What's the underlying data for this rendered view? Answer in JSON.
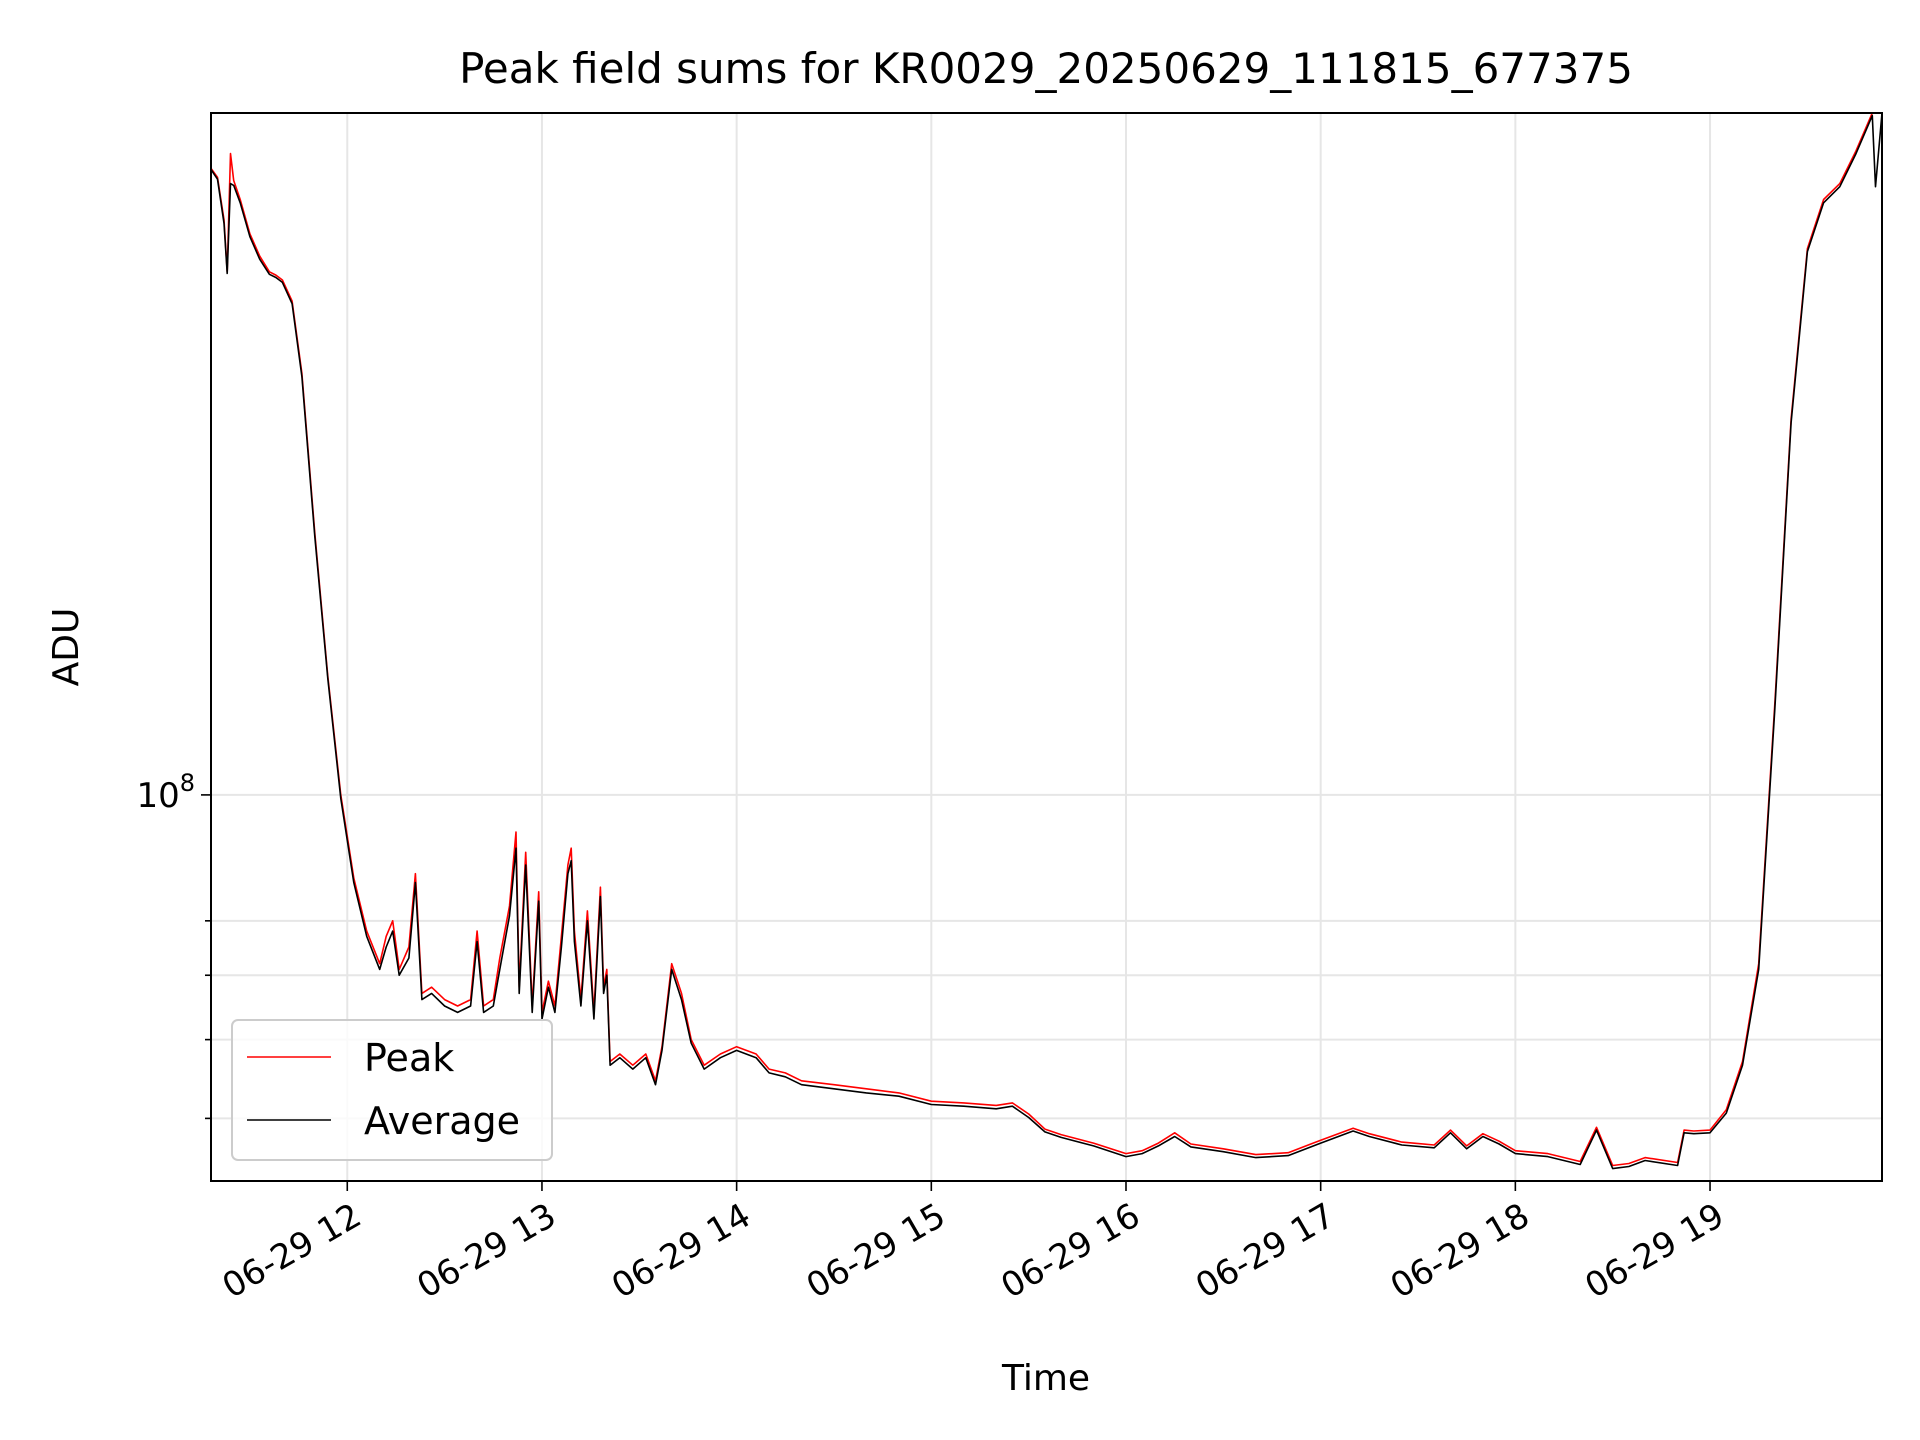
{
  "chart_data": {
    "type": "line",
    "title": "Peak field sums for KR0029_20250629_111815_677375",
    "xlabel": "Time",
    "ylabel": "ADU",
    "y_scale": "log",
    "grid": true,
    "legend_placement": "lower-left",
    "x_ticks": [
      "06-29 12",
      "06-29 13",
      "06-29 14",
      "06-29 15",
      "06-29 16",
      "06-29 17",
      "06-29 18",
      "06-29 19"
    ],
    "y_tick_major": {
      "base": "10",
      "exponent": "8"
    },
    "y_minor_ticks": [
      40000000,
      50000000,
      60000000,
      70000000
    ],
    "xlim": [
      "2025-06-29 11:18",
      "2025-06-29 19:53"
    ],
    "ylim": [
      33500000,
      690000000
    ],
    "series": [
      {
        "name": "Peak",
        "color": "#ff0000",
        "points": [
          [
            "2025-06-29 11:18",
            590000000
          ],
          [
            "2025-06-29 11:20",
            575000000
          ],
          [
            "2025-06-29 11:22",
            510000000
          ],
          [
            "2025-06-29 11:23",
            440000000
          ],
          [
            "2025-06-29 11:24",
            615000000
          ],
          [
            "2025-06-29 11:25",
            570000000
          ],
          [
            "2025-06-29 11:27",
            540000000
          ],
          [
            "2025-06-29 11:30",
            490000000
          ],
          [
            "2025-06-29 11:33",
            460000000
          ],
          [
            "2025-06-29 11:36",
            440000000
          ],
          [
            "2025-06-29 11:38",
            436000000
          ],
          [
            "2025-06-29 11:40",
            430000000
          ],
          [
            "2025-06-29 11:43",
            405000000
          ],
          [
            "2025-06-29 11:46",
            330000000
          ],
          [
            "2025-06-29 11:50",
            210000000
          ],
          [
            "2025-06-29 11:54",
            140000000
          ],
          [
            "2025-06-29 11:58",
            100000000
          ],
          [
            "2025-06-29 12:02",
            79000000
          ],
          [
            "2025-06-29 12:06",
            68000000
          ],
          [
            "2025-06-29 12:10",
            62000000
          ],
          [
            "2025-06-29 12:12",
            67000000
          ],
          [
            "2025-06-29 12:14",
            70000000
          ],
          [
            "2025-06-29 12:16",
            61000000
          ],
          [
            "2025-06-29 12:19",
            65000000
          ],
          [
            "2025-06-29 12:21",
            80000000
          ],
          [
            "2025-06-29 12:23",
            57000000
          ],
          [
            "2025-06-29 12:26",
            58000000
          ],
          [
            "2025-06-29 12:30",
            56000000
          ],
          [
            "2025-06-29 12:34",
            55000000
          ],
          [
            "2025-06-29 12:38",
            56000000
          ],
          [
            "2025-06-29 12:40",
            68000000
          ],
          [
            "2025-06-29 12:42",
            55000000
          ],
          [
            "2025-06-29 12:45",
            56000000
          ],
          [
            "2025-06-29 12:47",
            63000000
          ],
          [
            "2025-06-29 12:50",
            73000000
          ],
          [
            "2025-06-29 12:52",
            90000000
          ],
          [
            "2025-06-29 12:53",
            58000000
          ],
          [
            "2025-06-29 12:55",
            85000000
          ],
          [
            "2025-06-29 12:57",
            55000000
          ],
          [
            "2025-06-29 12:59",
            76000000
          ],
          [
            "2025-06-29 13:00",
            54000000
          ],
          [
            "2025-06-29 13:02",
            59000000
          ],
          [
            "2025-06-29 13:04",
            55000000
          ],
          [
            "2025-06-29 13:06",
            67000000
          ],
          [
            "2025-06-29 13:08",
            82000000
          ],
          [
            "2025-06-29 13:09",
            86000000
          ],
          [
            "2025-06-29 13:10",
            68000000
          ],
          [
            "2025-06-29 13:12",
            56000000
          ],
          [
            "2025-06-29 13:14",
            72000000
          ],
          [
            "2025-06-29 13:16",
            54000000
          ],
          [
            "2025-06-29 13:18",
            77000000
          ],
          [
            "2025-06-29 13:19",
            58000000
          ],
          [
            "2025-06-29 13:20",
            61000000
          ],
          [
            "2025-06-29 13:21",
            47000000
          ],
          [
            "2025-06-29 13:24",
            48000000
          ],
          [
            "2025-06-29 13:28",
            46500000
          ],
          [
            "2025-06-29 13:32",
            48000000
          ],
          [
            "2025-06-29 13:35",
            44500000
          ],
          [
            "2025-06-29 13:37",
            49000000
          ],
          [
            "2025-06-29 13:40",
            62000000
          ],
          [
            "2025-06-29 13:43",
            57000000
          ],
          [
            "2025-06-29 13:46",
            50000000
          ],
          [
            "2025-06-29 13:50",
            46500000
          ],
          [
            "2025-06-29 13:55",
            48000000
          ],
          [
            "2025-06-29 14:00",
            49000000
          ],
          [
            "2025-06-29 14:06",
            48000000
          ],
          [
            "2025-06-29 14:10",
            46000000
          ],
          [
            "2025-06-29 14:15",
            45500000
          ],
          [
            "2025-06-29 14:20",
            44500000
          ],
          [
            "2025-06-29 14:30",
            44000000
          ],
          [
            "2025-06-29 14:40",
            43500000
          ],
          [
            "2025-06-29 14:50",
            43000000
          ],
          [
            "2025-06-29 15:00",
            42000000
          ],
          [
            "2025-06-29 15:10",
            41800000
          ],
          [
            "2025-06-29 15:20",
            41500000
          ],
          [
            "2025-06-29 15:25",
            41800000
          ],
          [
            "2025-06-29 15:30",
            40500000
          ],
          [
            "2025-06-29 15:35",
            38800000
          ],
          [
            "2025-06-29 15:40",
            38200000
          ],
          [
            "2025-06-29 15:50",
            37300000
          ],
          [
            "2025-06-29 16:00",
            36200000
          ],
          [
            "2025-06-29 16:05",
            36500000
          ],
          [
            "2025-06-29 16:10",
            37300000
          ],
          [
            "2025-06-29 16:15",
            38400000
          ],
          [
            "2025-06-29 16:20",
            37200000
          ],
          [
            "2025-06-29 16:30",
            36700000
          ],
          [
            "2025-06-29 16:40",
            36100000
          ],
          [
            "2025-06-29 16:50",
            36300000
          ],
          [
            "2025-06-29 17:00",
            37600000
          ],
          [
            "2025-06-29 17:10",
            38900000
          ],
          [
            "2025-06-29 17:15",
            38300000
          ],
          [
            "2025-06-29 17:25",
            37400000
          ],
          [
            "2025-06-29 17:35",
            37100000
          ],
          [
            "2025-06-29 17:40",
            38700000
          ],
          [
            "2025-06-29 17:45",
            37000000
          ],
          [
            "2025-06-29 17:50",
            38300000
          ],
          [
            "2025-06-29 17:55",
            37500000
          ],
          [
            "2025-06-29 18:00",
            36500000
          ],
          [
            "2025-06-29 18:10",
            36200000
          ],
          [
            "2025-06-29 18:20",
            35400000
          ],
          [
            "2025-06-29 18:25",
            39000000
          ],
          [
            "2025-06-29 18:30",
            35000000
          ],
          [
            "2025-06-29 18:35",
            35200000
          ],
          [
            "2025-06-29 18:40",
            35800000
          ],
          [
            "2025-06-29 18:50",
            35300000
          ],
          [
            "2025-06-29 18:52",
            38700000
          ],
          [
            "2025-06-29 18:55",
            38600000
          ],
          [
            "2025-06-29 19:00",
            38700000
          ],
          [
            "2025-06-29 19:05",
            41000000
          ],
          [
            "2025-06-29 19:10",
            47000000
          ],
          [
            "2025-06-29 19:15",
            62000000
          ],
          [
            "2025-06-29 19:20",
            130000000
          ],
          [
            "2025-06-29 19:25",
            290000000
          ],
          [
            "2025-06-29 19:30",
            470000000
          ],
          [
            "2025-06-29 19:35",
            540000000
          ],
          [
            "2025-06-29 19:40",
            565000000
          ],
          [
            "2025-06-29 19:45",
            620000000
          ],
          [
            "2025-06-29 19:50",
            690000000
          ],
          [
            "2025-06-29 19:53",
            690000000
          ]
        ]
      },
      {
        "name": "Average",
        "color": "#000000",
        "points": [
          [
            "2025-06-29 11:18",
            588000000
          ],
          [
            "2025-06-29 11:20",
            572000000
          ],
          [
            "2025-06-29 11:22",
            505000000
          ],
          [
            "2025-06-29 11:23",
            438000000
          ],
          [
            "2025-06-29 11:24",
            565000000
          ],
          [
            "2025-06-29 11:25",
            562000000
          ],
          [
            "2025-06-29 11:27",
            535000000
          ],
          [
            "2025-06-29 11:30",
            486000000
          ],
          [
            "2025-06-29 11:33",
            456000000
          ],
          [
            "2025-06-29 11:36",
            437000000
          ],
          [
            "2025-06-29 11:38",
            433000000
          ],
          [
            "2025-06-29 11:40",
            427000000
          ],
          [
            "2025-06-29 11:43",
            402000000
          ],
          [
            "2025-06-29 11:46",
            327000000
          ],
          [
            "2025-06-29 11:50",
            208000000
          ],
          [
            "2025-06-29 11:54",
            139000000
          ],
          [
            "2025-06-29 11:58",
            99000000
          ],
          [
            "2025-06-29 12:02",
            78000000
          ],
          [
            "2025-06-29 12:06",
            67000000
          ],
          [
            "2025-06-29 12:10",
            61000000
          ],
          [
            "2025-06-29 12:12",
            65000000
          ],
          [
            "2025-06-29 12:14",
            68000000
          ],
          [
            "2025-06-29 12:16",
            60000000
          ],
          [
            "2025-06-29 12:19",
            63000000
          ],
          [
            "2025-06-29 12:21",
            78000000
          ],
          [
            "2025-06-29 12:23",
            56000000
          ],
          [
            "2025-06-29 12:26",
            57000000
          ],
          [
            "2025-06-29 12:30",
            55000000
          ],
          [
            "2025-06-29 12:34",
            54000000
          ],
          [
            "2025-06-29 12:38",
            55000000
          ],
          [
            "2025-06-29 12:40",
            66000000
          ],
          [
            "2025-06-29 12:42",
            54000000
          ],
          [
            "2025-06-29 12:45",
            55000000
          ],
          [
            "2025-06-29 12:47",
            61000000
          ],
          [
            "2025-06-29 12:50",
            71000000
          ],
          [
            "2025-06-29 12:52",
            86000000
          ],
          [
            "2025-06-29 12:53",
            57000000
          ],
          [
            "2025-06-29 12:55",
            82000000
          ],
          [
            "2025-06-29 12:57",
            54000000
          ],
          [
            "2025-06-29 12:59",
            74000000
          ],
          [
            "2025-06-29 13:00",
            53000000
          ],
          [
            "2025-06-29 13:02",
            58000000
          ],
          [
            "2025-06-29 13:04",
            54000000
          ],
          [
            "2025-06-29 13:06",
            65000000
          ],
          [
            "2025-06-29 13:08",
            80000000
          ],
          [
            "2025-06-29 13:09",
            83000000
          ],
          [
            "2025-06-29 13:10",
            66000000
          ],
          [
            "2025-06-29 13:12",
            55000000
          ],
          [
            "2025-06-29 13:14",
            70000000
          ],
          [
            "2025-06-29 13:16",
            53000000
          ],
          [
            "2025-06-29 13:18",
            75000000
          ],
          [
            "2025-06-29 13:19",
            57000000
          ],
          [
            "2025-06-29 13:20",
            60000000
          ],
          [
            "2025-06-29 13:21",
            46500000
          ],
          [
            "2025-06-29 13:24",
            47500000
          ],
          [
            "2025-06-29 13:28",
            46000000
          ],
          [
            "2025-06-29 13:32",
            47500000
          ],
          [
            "2025-06-29 13:35",
            44000000
          ],
          [
            "2025-06-29 13:37",
            48500000
          ],
          [
            "2025-06-29 13:40",
            61000000
          ],
          [
            "2025-06-29 13:43",
            56000000
          ],
          [
            "2025-06-29 13:46",
            49500000
          ],
          [
            "2025-06-29 13:50",
            46000000
          ],
          [
            "2025-06-29 13:55",
            47500000
          ],
          [
            "2025-06-29 14:00",
            48500000
          ],
          [
            "2025-06-29 14:06",
            47500000
          ],
          [
            "2025-06-29 14:10",
            45500000
          ],
          [
            "2025-06-29 14:15",
            45000000
          ],
          [
            "2025-06-29 14:20",
            44000000
          ],
          [
            "2025-06-29 14:30",
            43500000
          ],
          [
            "2025-06-29 14:40",
            43000000
          ],
          [
            "2025-06-29 14:50",
            42600000
          ],
          [
            "2025-06-29 15:00",
            41600000
          ],
          [
            "2025-06-29 15:10",
            41400000
          ],
          [
            "2025-06-29 15:20",
            41100000
          ],
          [
            "2025-06-29 15:25",
            41400000
          ],
          [
            "2025-06-29 15:30",
            40100000
          ],
          [
            "2025-06-29 15:35",
            38500000
          ],
          [
            "2025-06-29 15:40",
            37900000
          ],
          [
            "2025-06-29 15:50",
            37000000
          ],
          [
            "2025-06-29 16:00",
            35900000
          ],
          [
            "2025-06-29 16:05",
            36200000
          ],
          [
            "2025-06-29 16:10",
            37000000
          ],
          [
            "2025-06-29 16:15",
            38000000
          ],
          [
            "2025-06-29 16:20",
            36900000
          ],
          [
            "2025-06-29 16:30",
            36400000
          ],
          [
            "2025-06-29 16:40",
            35800000
          ],
          [
            "2025-06-29 16:50",
            36000000
          ],
          [
            "2025-06-29 17:00",
            37300000
          ],
          [
            "2025-06-29 17:10",
            38600000
          ],
          [
            "2025-06-29 17:15",
            38000000
          ],
          [
            "2025-06-29 17:25",
            37100000
          ],
          [
            "2025-06-29 17:35",
            36800000
          ],
          [
            "2025-06-29 17:40",
            38400000
          ],
          [
            "2025-06-29 17:45",
            36700000
          ],
          [
            "2025-06-29 17:50",
            38000000
          ],
          [
            "2025-06-29 17:55",
            37200000
          ],
          [
            "2025-06-29 18:00",
            36200000
          ],
          [
            "2025-06-29 18:10",
            35900000
          ],
          [
            "2025-06-29 18:20",
            35100000
          ],
          [
            "2025-06-29 18:25",
            38700000
          ],
          [
            "2025-06-29 18:30",
            34700000
          ],
          [
            "2025-06-29 18:35",
            34900000
          ],
          [
            "2025-06-29 18:40",
            35500000
          ],
          [
            "2025-06-29 18:50",
            35000000
          ],
          [
            "2025-06-29 18:52",
            38400000
          ],
          [
            "2025-06-29 18:55",
            38300000
          ],
          [
            "2025-06-29 19:00",
            38400000
          ],
          [
            "2025-06-29 19:05",
            40600000
          ],
          [
            "2025-06-29 19:10",
            46500000
          ],
          [
            "2025-06-29 19:15",
            61000000
          ],
          [
            "2025-06-29 19:20",
            128000000
          ],
          [
            "2025-06-29 19:25",
            287000000
          ],
          [
            "2025-06-29 19:30",
            466000000
          ],
          [
            "2025-06-29 19:35",
            535000000
          ],
          [
            "2025-06-29 19:40",
            560000000
          ],
          [
            "2025-06-29 19:45",
            615000000
          ],
          [
            "2025-06-29 19:50",
            685000000
          ],
          [
            "2025-06-29 19:51",
            560000000
          ],
          [
            "2025-06-29 19:53",
            690000000
          ]
        ]
      }
    ]
  }
}
